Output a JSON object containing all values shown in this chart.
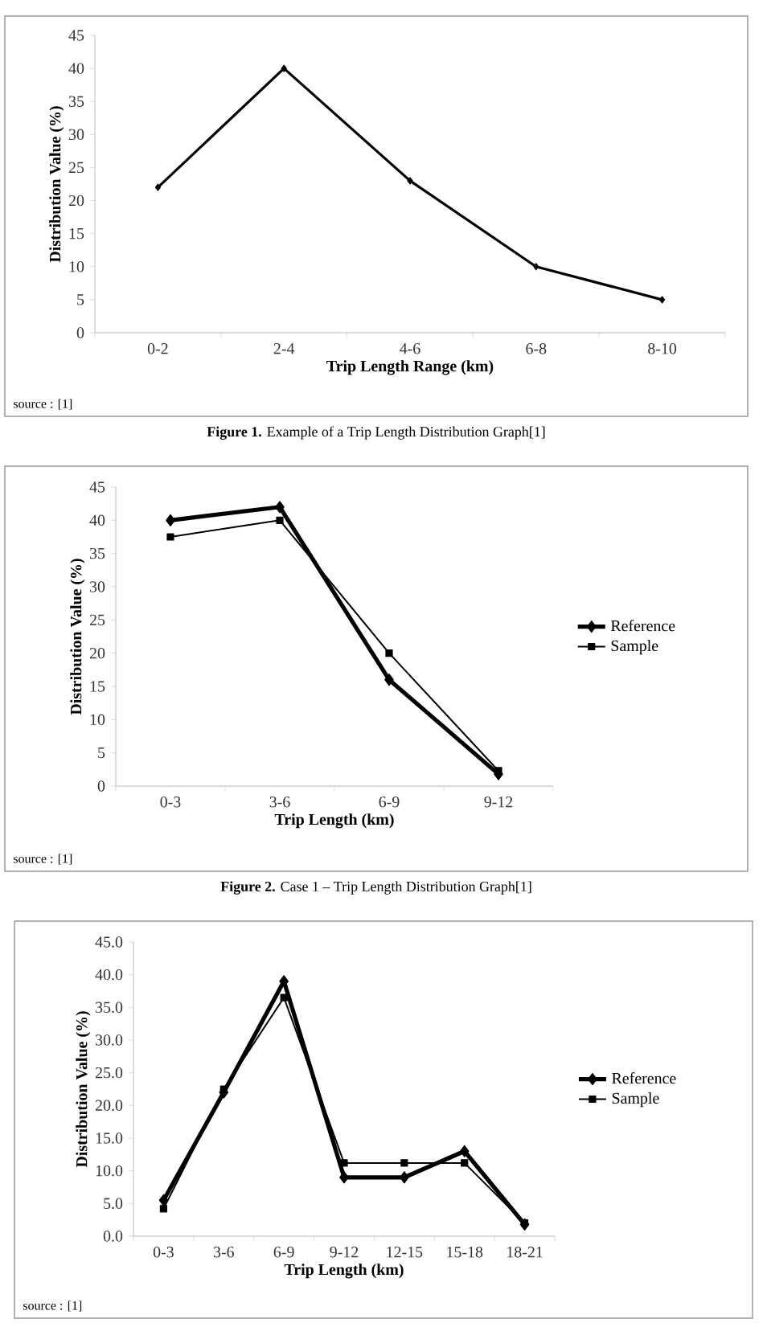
{
  "chart_data": [
    {
      "type": "line",
      "categories": [
        "0-2",
        "2-4",
        "4-6",
        "6-8",
        "8-10"
      ],
      "values": [
        22,
        40,
        23,
        10,
        5
      ],
      "color": "#000000",
      "marker": "diamond",
      "xlabel": "Trip Length Range (km)",
      "ylabel": "Distribution Value (%)",
      "ylim": [
        0,
        45
      ],
      "yticks": [
        0,
        5,
        10,
        15,
        20,
        25,
        30,
        35,
        40,
        45
      ],
      "legend": false,
      "grid": false,
      "annotations": [
        "source : [1]",
        "**Figure 1.** Example of a Trip Length Distribution Graph[1]"
      ]
    },
    {
      "type": "line",
      "categories": [
        "0-3",
        "3-6",
        "6-9",
        "9-12"
      ],
      "series": [
        {
          "name": "Reference",
          "color": "#000000",
          "marker": "diamond",
          "values": [
            40,
            42,
            16,
            1.8
          ]
        },
        {
          "name": "Sample",
          "color": "#000000",
          "marker": "square",
          "values": [
            37.5,
            40,
            20,
            2.3
          ]
        }
      ],
      "xlabel": "Trip Length (km)",
      "ylabel": "Distribution Value (%)",
      "ylim": [
        0,
        45
      ],
      "yticks": [
        0,
        5,
        10,
        15,
        20,
        25,
        30,
        35,
        40,
        45
      ],
      "legend": "right",
      "grid": false,
      "annotations": [
        "source : [1]",
        "**Figure 2.** Case 1 – Trip Length Distribution Graph[1]"
      ]
    },
    {
      "type": "line",
      "categories": [
        "0-3",
        "3-6",
        "6-9",
        "9-12",
        "12-15",
        "15-18",
        "18-21"
      ],
      "series": [
        {
          "name": "Reference",
          "color": "#000000",
          "marker": "diamond",
          "values": [
            5.5,
            22,
            39,
            9,
            9,
            13,
            1.8
          ]
        },
        {
          "name": "Sample",
          "color": "#000000",
          "marker": "square",
          "values": [
            4.2,
            22.5,
            36.5,
            11.2,
            11.2,
            11.2,
            2
          ]
        }
      ],
      "xlabel": "Trip Length (km)",
      "ylabel": "Distribution Value (%)",
      "ylim": [
        0,
        45
      ],
      "yticks": [
        {
          "value": 0,
          "label": "0.0"
        },
        {
          "value": 5,
          "label": "5.0"
        },
        {
          "value": 10,
          "label": "10.0"
        },
        {
          "value": 15,
          "label": "15.0"
        },
        {
          "value": 20,
          "label": "20.0"
        },
        {
          "value": 25,
          "label": "25.0"
        },
        {
          "value": 30,
          "label": "30.0"
        },
        {
          "value": 35,
          "label": "35.0"
        },
        {
          "value": 40,
          "label": "40.0"
        },
        {
          "value": 45,
          "label": "45.0"
        }
      ],
      "legend": "right",
      "grid": false,
      "annotations": [
        "source : [1]"
      ]
    }
  ]
}
